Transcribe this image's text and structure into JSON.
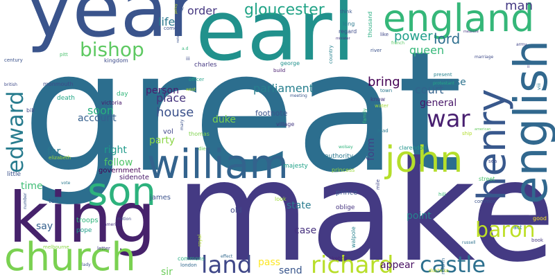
{
  "words": [
    {
      "text": "great",
      "color": "#2c6e8e"
    },
    {
      "text": "make",
      "color": "#443a83"
    },
    {
      "text": "year",
      "color": "#3a548c"
    },
    {
      "text": "earl",
      "color": "#21918c"
    },
    {
      "text": "king",
      "color": "#46226b"
    },
    {
      "text": "england",
      "color": "#35b779"
    },
    {
      "text": "english",
      "color": "#31688e"
    },
    {
      "text": "william",
      "color": "#33638d"
    },
    {
      "text": "church",
      "color": "#7ad151"
    },
    {
      "text": "son",
      "color": "#2db27d"
    },
    {
      "text": "henry",
      "color": "#38588c"
    },
    {
      "text": "john",
      "color": "#b5de2b"
    },
    {
      "text": "richard",
      "color": "#b8de29"
    },
    {
      "text": "castle",
      "color": "#2d708e"
    },
    {
      "text": "land",
      "color": "#3f4788"
    },
    {
      "text": "baron",
      "color": "#bddf26"
    },
    {
      "text": "edward",
      "color": "#287c8e"
    },
    {
      "text": "bishop",
      "color": "#5ec962"
    },
    {
      "text": "gloucester",
      "color": "#20a386"
    },
    {
      "text": "war",
      "color": "#481f70"
    },
    {
      "text": "lord",
      "color": "#2e6f8e"
    },
    {
      "text": "man",
      "color": "#443983"
    },
    {
      "text": "power",
      "color": "#1f9e89"
    },
    {
      "text": "queen",
      "color": "#35b779"
    },
    {
      "text": "order",
      "color": "#453781"
    },
    {
      "text": "life",
      "color": "#2a788e"
    },
    {
      "text": "parliament",
      "color": "#277f8e"
    },
    {
      "text": "person",
      "color": "#481b6d"
    },
    {
      "text": "place",
      "color": "#45337d"
    },
    {
      "text": "house",
      "color": "#3b518b"
    },
    {
      "text": "bring",
      "color": "#440154"
    },
    {
      "text": "court",
      "color": "#33638d"
    },
    {
      "text": "course",
      "color": "#2c728e"
    },
    {
      "text": "general",
      "color": "#481769"
    },
    {
      "text": "soon",
      "color": "#2ab07f"
    },
    {
      "text": "account",
      "color": "#355f8d"
    },
    {
      "text": "duke",
      "color": "#7ad151"
    },
    {
      "text": "party",
      "color": "#8bd646"
    },
    {
      "text": "right",
      "color": "#1f9a8a"
    },
    {
      "text": "follow",
      "color": "#52c569"
    },
    {
      "text": "far",
      "color": "#2a778e"
    },
    {
      "text": "time",
      "color": "#3dbc74"
    },
    {
      "text": "say",
      "color": "#34608d"
    },
    {
      "text": "state",
      "color": "#297b8e"
    },
    {
      "text": "case",
      "color": "#46307e"
    },
    {
      "text": "point",
      "color": "#25858e"
    },
    {
      "text": "appear",
      "color": "#470e61"
    },
    {
      "text": "send",
      "color": "#39568c"
    },
    {
      "text": "pass",
      "color": "#fde725"
    },
    {
      "text": "sir",
      "color": "#6ccd5a"
    },
    {
      "text": "form",
      "color": "#424086"
    },
    {
      "text": "footnote",
      "color": "#3b528b"
    },
    {
      "text": "vol",
      "color": "#404588"
    },
    {
      "text": "thomas",
      "color": "#7fd34e"
    },
    {
      "text": "government",
      "color": "#440154"
    },
    {
      "text": "sidenote",
      "color": "#48186a"
    },
    {
      "text": "james",
      "color": "#3b528b"
    },
    {
      "text": "old",
      "color": "#3f4889"
    },
    {
      "text": "troops",
      "color": "#2fb47c"
    },
    {
      "text": "pope",
      "color": "#1f9e89"
    },
    {
      "text": "little",
      "color": "#3b528b"
    },
    {
      "text": "charles",
      "color": "#453882"
    },
    {
      "text": "victoria",
      "color": "#48186a"
    },
    {
      "text": "day",
      "color": "#32b67a"
    },
    {
      "text": "death",
      "color": "#21a685"
    },
    {
      "text": "monmouth",
      "color": "#3e4a89"
    },
    {
      "text": "tell",
      "color": "#375b8d"
    },
    {
      "text": "bill",
      "color": "#3f4889"
    },
    {
      "text": "commons",
      "color": "#26ad81"
    },
    {
      "text": "kingdom",
      "color": "#3e4c8a"
    },
    {
      "text": "prince",
      "color": "#39568c"
    },
    {
      "text": "oblige",
      "color": "#463480"
    },
    {
      "text": "look",
      "color": "#9dd93b"
    },
    {
      "text": "authority",
      "color": "#2a778e"
    },
    {
      "text": "majesty",
      "color": "#1fa187"
    },
    {
      "text": "sketch",
      "color": "#482576"
    },
    {
      "text": "village",
      "color": "#443983"
    },
    {
      "text": "meeting",
      "color": "#39568c"
    },
    {
      "text": "clarendon",
      "color": "#1f948c"
    },
    {
      "text": "princess",
      "color": "#9bd93c"
    },
    {
      "text": "street",
      "color": "#4ac16d"
    },
    {
      "text": "hill",
      "color": "#3aba76"
    },
    {
      "text": "common",
      "color": "#3b528b"
    },
    {
      "text": "act",
      "color": "#2b758e"
    },
    {
      "text": "good",
      "color": "#fde725"
    },
    {
      "text": "book",
      "color": "#453781"
    },
    {
      "text": "russell",
      "color": "#2c718e"
    },
    {
      "text": "duchess",
      "color": "#c2df23"
    },
    {
      "text": "letter",
      "color": "#443983"
    },
    {
      "text": "lady",
      "color": "#3b528b"
    },
    {
      "text": "london",
      "color": "#31688e"
    },
    {
      "text": "america",
      "color": "#46307e"
    },
    {
      "text": "melbourne",
      "color": "#8bd646"
    },
    {
      "text": "effect",
      "color": "#31688e"
    },
    {
      "text": "elizabeth",
      "color": "#a0da39"
    },
    {
      "text": "number",
      "color": "#39568c"
    },
    {
      "text": "vote",
      "color": "#2a788e"
    },
    {
      "text": "motion",
      "color": "#3f4788"
    },
    {
      "text": "officer",
      "color": "#1fa187"
    },
    {
      "text": "west",
      "color": "#b5de2b"
    },
    {
      "text": "george",
      "color": "#21918c"
    },
    {
      "text": "build",
      "color": "#481c6e"
    },
    {
      "text": "town",
      "color": "#2a788e"
    },
    {
      "text": "know",
      "color": "#453882"
    },
    {
      "text": "water",
      "color": "#a2da37"
    },
    {
      "text": "present",
      "color": "#26828e"
    },
    {
      "text": "marriage",
      "color": "#3e4a89"
    },
    {
      "text": "river",
      "color": "#3b528b"
    },
    {
      "text": "protestant",
      "color": "#22a785"
    },
    {
      "text": "french",
      "color": "#5ac864"
    },
    {
      "text": "army",
      "color": "#404588"
    },
    {
      "text": "ship",
      "color": "#b2dd2d"
    },
    {
      "text": "american",
      "color": "#65cb5e"
    },
    {
      "text": "sea",
      "color": "#3e4a89"
    },
    {
      "text": "century",
      "color": "#3b528b"
    },
    {
      "text": "pitt",
      "color": "#4ac16d"
    },
    {
      "text": "british",
      "color": "#3e4a89"
    },
    {
      "text": "think",
      "color": "#39568c"
    },
    {
      "text": "thousand",
      "color": "#27ad81"
    },
    {
      "text": "regard",
      "color": "#3e4a89"
    },
    {
      "text": "long",
      "color": "#2a788e"
    },
    {
      "text": "country",
      "color": "#26828e"
    },
    {
      "text": "like",
      "color": "#3f4788"
    },
    {
      "text": "minister",
      "color": "#46307e"
    },
    {
      "text": "measure",
      "color": "#453882"
    },
    {
      "text": "come",
      "color": "#3b528b"
    },
    {
      "text": "a.d",
      "color": "#32b67a"
    },
    {
      "text": "iii",
      "color": "#3e4a89"
    },
    {
      "text": "ii",
      "color": "#453882"
    },
    {
      "text": "viii",
      "color": "#2a788e"
    },
    {
      "text": "policy",
      "color": "#c8e020"
    },
    {
      "text": "note",
      "color": "#3b528b"
    },
    {
      "text": "family",
      "color": "#3aba76"
    },
    {
      "text": "road",
      "color": "#2a788e"
    },
    {
      "text": "mile",
      "color": "#3f4788"
    },
    {
      "text": "walpole",
      "color": "#26828e"
    },
    {
      "text": "reform",
      "color": "#31688e"
    },
    {
      "text": "wolsey",
      "color": "#2fb47c"
    },
    {
      "text": "die",
      "color": "#6ece58"
    },
    {
      "text": "mary",
      "color": "#3b528b"
    },
    {
      "text": "royal",
      "color": "#b2dd2d"
    },
    {
      "text": "pay",
      "color": "#39568c"
    }
  ]
}
